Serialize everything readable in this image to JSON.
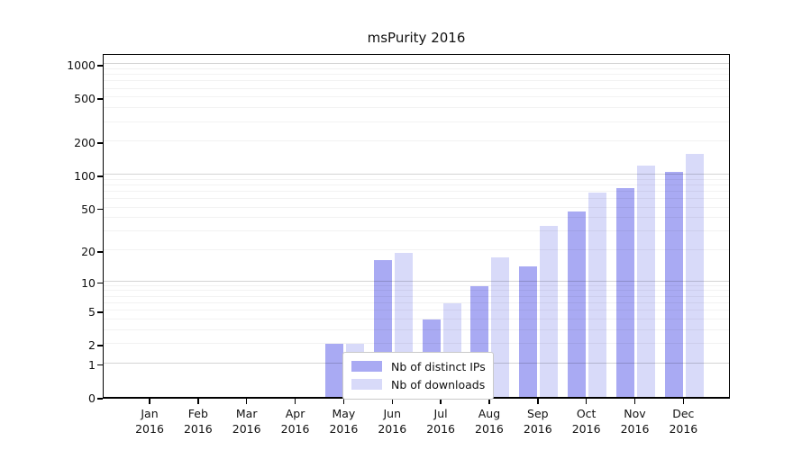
{
  "title": "msPurity 2016",
  "chart_data": {
    "type": "bar",
    "title": "msPurity 2016",
    "categories": [
      "Jan 2016",
      "Feb 2016",
      "Mar 2016",
      "Apr 2016",
      "May 2016",
      "Jun 2016",
      "Jul 2016",
      "Aug 2016",
      "Sep 2016",
      "Oct 2016",
      "Nov 2016",
      "Dec 2016"
    ],
    "series": [
      {
        "name": "Nb of distinct IPs",
        "color": "#a9aaf3",
        "values": [
          0,
          0,
          0,
          0,
          2,
          16,
          4,
          9,
          14,
          46,
          76,
          105
        ]
      },
      {
        "name": "Nb of downloads",
        "color": "#d8daf9",
        "values": [
          0,
          0,
          0,
          0,
          2,
          19,
          6,
          17,
          34,
          68,
          120,
          154
        ]
      }
    ],
    "xlabel": "",
    "ylabel": "",
    "yscale": "log1p",
    "ylim": [
      0,
      1282
    ],
    "yticks": [
      0,
      1,
      2,
      5,
      10,
      20,
      50,
      100,
      200,
      500,
      1000
    ],
    "grid": "horizontal major (powers of 10) + faint minor (2-9 per decade)",
    "legend_position": "bottom-center inside plot"
  },
  "legend": {
    "items": [
      {
        "label": "Nb of distinct IPs",
        "color": "#a9aaf3"
      },
      {
        "label": "Nb of downloads",
        "color": "#d8daf9"
      }
    ]
  },
  "colors": {
    "bar_dark": "#a9aaf3",
    "bar_light": "#d8daf9",
    "axis": "#000000",
    "grid_major": "#d3d3d3",
    "grid_minor": "#efefef",
    "background": "#ffffff"
  }
}
